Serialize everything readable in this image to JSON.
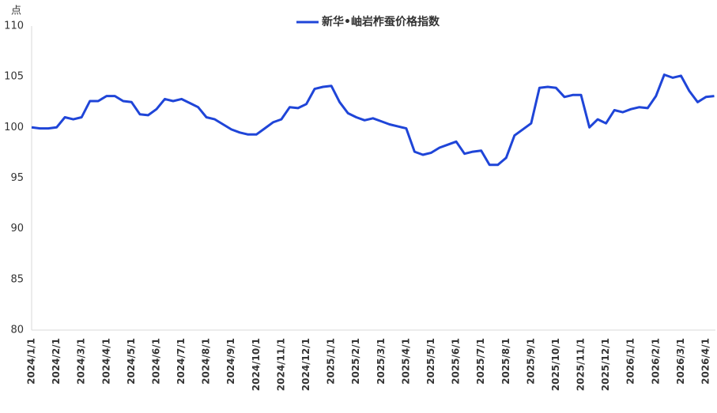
{
  "chart_data": {
    "type": "line",
    "title": "新华•岫岩柞蚕价格指数",
    "y_label": "点",
    "categories": [
      "2024/1/1",
      null,
      null,
      "2024/2/1",
      null,
      null,
      "2024/3/1",
      null,
      null,
      "2024/4/1",
      null,
      null,
      "2024/5/1",
      null,
      null,
      "2024/6/1",
      null,
      null,
      "2024/7/1",
      null,
      null,
      "2024/8/1",
      null,
      null,
      "2024/9/1",
      null,
      null,
      "2024/10/1",
      null,
      null,
      "2024/11/1",
      null,
      null,
      "2024/12/1",
      null,
      null,
      "2025/1/1",
      null,
      null,
      "2025/2/1",
      null,
      null,
      "2025/3/1",
      null,
      null,
      "2025/4/1",
      null,
      null,
      "2025/5/1",
      null,
      null,
      "2025/6/1",
      null,
      null,
      "2025/7/1",
      null,
      null,
      "2025/8/1",
      null,
      null,
      "2025/9/1",
      null,
      null,
      "2025/10/1",
      null,
      null,
      "2025/11/1",
      null,
      null,
      "2025/12/1",
      null,
      null,
      "2026/1/1",
      null,
      null,
      "2026/2/1",
      null,
      null,
      "2026/3/1",
      null,
      null,
      "2026/4/1",
      null
    ],
    "series": [
      {
        "name": "新华•岫岩柞蚕价格指数",
        "color": "#1f45d8",
        "values": [
          100.0,
          99.9,
          99.9,
          100.0,
          101.0,
          100.8,
          101.0,
          102.6,
          102.6,
          103.1,
          103.1,
          102.6,
          102.5,
          101.3,
          101.2,
          101.8,
          102.8,
          102.6,
          102.8,
          102.4,
          102.0,
          101.0,
          100.8,
          100.3,
          99.8,
          99.5,
          99.3,
          99.3,
          99.9,
          100.5,
          100.8,
          102.0,
          101.9,
          102.3,
          103.8,
          104.0,
          104.1,
          102.5,
          101.4,
          101.0,
          100.7,
          100.9,
          100.6,
          100.3,
          100.1,
          99.9,
          97.6,
          97.3,
          97.5,
          98.0,
          98.3,
          98.6,
          97.4,
          97.6,
          97.7,
          96.3,
          96.3,
          97.0,
          99.2,
          99.8,
          100.4,
          103.9,
          104.0,
          103.9,
          103.0,
          103.2,
          103.2,
          100.0,
          100.8,
          100.4,
          101.7,
          101.5,
          101.8,
          102.0,
          101.9,
          103.1,
          105.2,
          104.9,
          105.1,
          103.6,
          102.5,
          103.0,
          103.1
        ]
      }
    ],
    "ylim": [
      80,
      110
    ],
    "yticks": [
      80,
      85,
      90,
      95,
      100,
      105,
      110
    ],
    "grid": false,
    "legend": "top"
  }
}
